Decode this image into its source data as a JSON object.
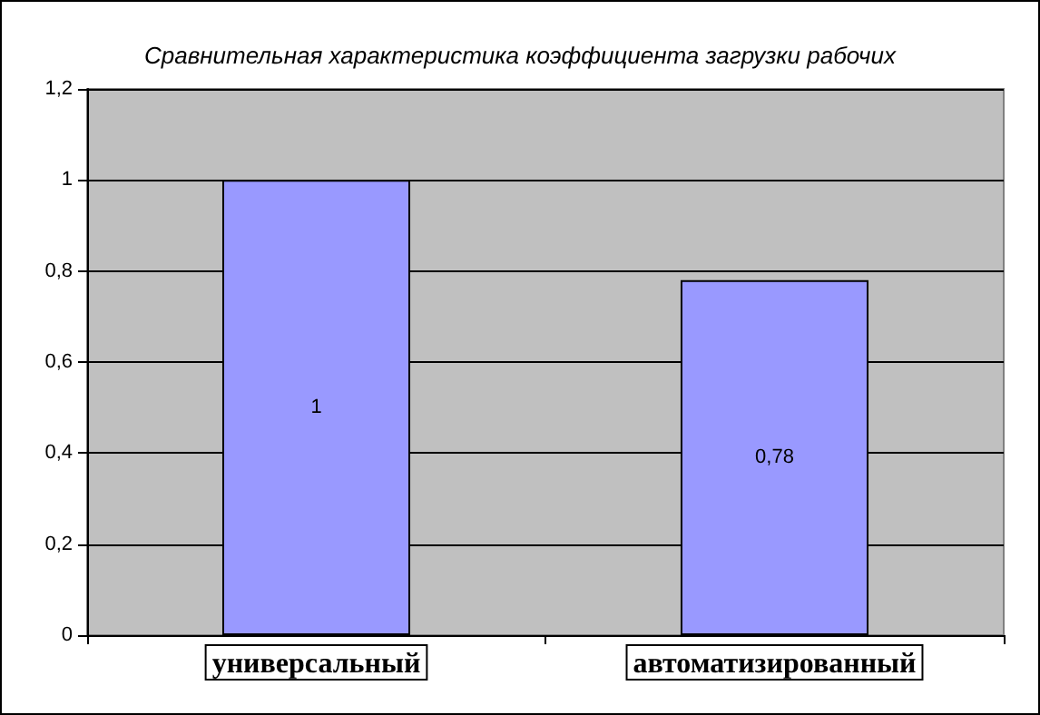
{
  "chart_data": {
    "type": "bar",
    "title": "Сравнительная характеристика коэффициента загрузки рабочих",
    "categories": [
      "универсальный",
      "автоматизированный"
    ],
    "values": [
      1,
      0.78
    ],
    "value_labels": [
      "1",
      "0,78"
    ],
    "color": "#9999ff",
    "ylim": [
      0,
      1.2
    ],
    "yticks": [
      0,
      {
        "value": 0.2,
        "label": "0,2"
      },
      {
        "value": 0.4,
        "label": "0,4"
      },
      {
        "value": 0.6,
        "label": "0,6"
      },
      {
        "value": 0.8,
        "label": "0,8"
      },
      1,
      {
        "value": 1.2,
        "label": "1,2"
      }
    ],
    "grid": "y"
  }
}
